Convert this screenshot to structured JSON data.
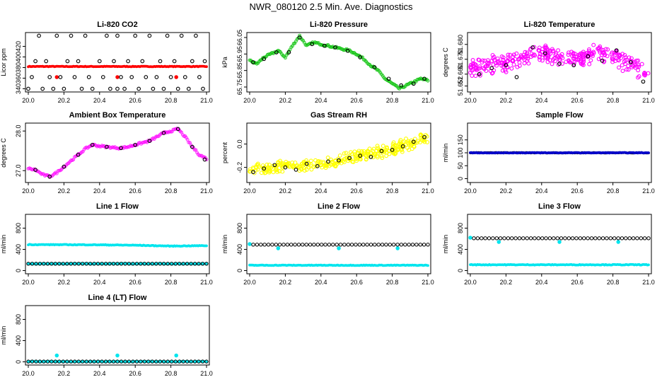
{
  "figure_title": "NWR_080120  2.5 Min. Ave. Diagnostics",
  "chart_data": [
    {
      "id": "co2",
      "type": "scatter",
      "title": "Li-820 CO2",
      "xlabel": "",
      "ylabel": "Licor ppm",
      "xlim": [
        20.0,
        21.0
      ],
      "ylim": [
        334,
        446
      ],
      "xticks": [
        "20.0",
        "20.2",
        "20.4",
        "20.6",
        "20.8",
        "21.0"
      ],
      "yticks": [
        340,
        360,
        380,
        400,
        420
      ],
      "series": [
        {
          "color": "#ff0000",
          "style": "dense",
          "x": [
            20.0,
            20.1,
            20.2,
            20.3,
            20.4,
            20.5,
            20.6,
            20.7,
            20.8,
            20.9,
            21.0
          ],
          "y": [
            382,
            382,
            382,
            382,
            382,
            382,
            382,
            382,
            382,
            382,
            382
          ]
        },
        {
          "color": "#ff0000",
          "style": "points",
          "x": [
            20.16,
            20.5,
            20.83
          ],
          "y": [
            362,
            362,
            362
          ]
        },
        {
          "color": "#000000",
          "style": "open",
          "x": [
            20.0,
            20.08,
            20.14,
            20.2,
            20.3,
            20.36,
            20.46,
            20.5,
            20.54,
            20.62,
            20.7,
            20.76,
            20.84,
            20.9,
            20.98,
            20.02,
            20.12,
            20.18,
            20.26,
            20.34,
            20.42,
            20.52,
            20.58,
            20.66,
            20.72,
            20.8,
            20.88,
            20.96,
            20.04,
            20.1,
            20.22,
            20.28,
            20.4,
            20.48,
            20.56,
            20.64,
            20.74,
            20.82,
            20.92,
            20.99,
            20.06,
            20.16,
            20.24,
            20.32,
            20.44,
            20.5,
            20.6,
            20.68,
            20.78,
            20.86,
            20.94
          ],
          "y": [
            340,
            340,
            340,
            340,
            340,
            340,
            340,
            340,
            340,
            340,
            340,
            340,
            340,
            340,
            340,
            362,
            362,
            362,
            362,
            362,
            362,
            362,
            362,
            362,
            362,
            362,
            362,
            362,
            392,
            392,
            392,
            392,
            392,
            392,
            392,
            392,
            392,
            392,
            392,
            392,
            440,
            440,
            440,
            440,
            440,
            440,
            440,
            440,
            440,
            440,
            440
          ]
        }
      ]
    },
    {
      "id": "pressure",
      "type": "scatter",
      "title": "Li-820 Pressure",
      "xlabel": "",
      "ylabel": "kPa",
      "xlim": [
        20.0,
        21.0
      ],
      "ylim": [
        65.72,
        66.08
      ],
      "xticks": [
        "20.0",
        "20.2",
        "20.4",
        "20.6",
        "20.8",
        "21.0"
      ],
      "yticks": [
        "65.75",
        "65.85",
        "65.95",
        "66.05"
      ],
      "series": [
        {
          "color": "#00c000",
          "style": "line",
          "x": [
            20.0,
            20.04,
            20.08,
            20.12,
            20.16,
            20.2,
            20.24,
            20.28,
            20.32,
            20.36,
            20.4,
            20.44,
            20.48,
            20.52,
            20.56,
            20.6,
            20.64,
            20.68,
            20.72,
            20.76,
            20.8,
            20.84,
            20.88,
            20.92,
            20.96,
            21.0
          ],
          "y": [
            65.91,
            65.89,
            65.93,
            65.95,
            65.97,
            65.93,
            66.0,
            66.06,
            66.0,
            66.02,
            66.01,
            66.0,
            65.99,
            65.98,
            65.97,
            65.95,
            65.92,
            65.88,
            65.85,
            65.8,
            65.77,
            65.74,
            65.76,
            65.78,
            65.8,
            65.79
          ]
        },
        {
          "color": "#000000",
          "style": "open",
          "x": [
            20.02,
            20.08,
            20.15,
            20.22,
            20.28,
            20.35,
            20.42,
            20.48,
            20.55,
            20.62,
            20.7,
            20.78,
            20.85,
            20.92,
            20.98
          ],
          "y": [
            65.9,
            65.92,
            65.96,
            65.96,
            66.05,
            66.01,
            66.0,
            65.99,
            65.97,
            65.93,
            65.87,
            65.8,
            65.76,
            65.77,
            65.8
          ]
        }
      ]
    },
    {
      "id": "licor_temp",
      "type": "scatter",
      "title": "Li-820 Temperature",
      "xlabel": "",
      "ylabel": "degrees C",
      "xlim": [
        20.0,
        21.0
      ],
      "ylim": [
        51.648,
        51.688
      ],
      "xticks": [
        "20.0",
        "20.2",
        "20.4",
        "20.6",
        "20.8",
        "21.0"
      ],
      "yticks": [
        "51.652",
        "51.660",
        "51.670",
        "51.680"
      ],
      "series": [
        {
          "color": "#ff00ff",
          "style": "cloud",
          "x": [
            20.0,
            20.1,
            20.2,
            20.3,
            20.4,
            20.5,
            20.6,
            20.7,
            20.8,
            20.9,
            21.0
          ],
          "y": [
            51.664,
            51.666,
            51.668,
            51.672,
            51.674,
            51.672,
            51.67,
            51.674,
            51.671,
            51.667,
            51.658
          ],
          "spread": 0.007
        },
        {
          "color": "#000000",
          "style": "open",
          "x": [
            20.05,
            20.12,
            20.2,
            20.26,
            20.35,
            20.42,
            20.5,
            20.58,
            20.66,
            20.74,
            20.82,
            20.9,
            20.97
          ],
          "y": [
            51.66,
            51.664,
            51.666,
            51.658,
            51.678,
            51.674,
            51.667,
            51.666,
            51.672,
            51.669,
            51.676,
            51.668,
            51.655
          ]
        }
      ]
    },
    {
      "id": "box_temp",
      "type": "scatter",
      "title": "Ambient Box Temperature",
      "xlabel": "",
      "ylabel": "degrees C",
      "xlim": [
        20.0,
        21.0
      ],
      "ylim": [
        26.7,
        28.2
      ],
      "xticks": [
        "20.0",
        "20.2",
        "20.4",
        "20.6",
        "20.8",
        "21.0"
      ],
      "yticks": [
        "27.0",
        "28.0"
      ],
      "series": [
        {
          "color": "#ff00ff",
          "style": "line",
          "x": [
            20.0,
            20.04,
            20.08,
            20.12,
            20.16,
            20.2,
            20.24,
            20.28,
            20.32,
            20.36,
            20.4,
            20.44,
            20.48,
            20.52,
            20.56,
            20.6,
            20.64,
            20.68,
            20.72,
            20.76,
            20.8,
            20.84,
            20.88,
            20.92,
            20.96,
            21.0
          ],
          "y": [
            27.05,
            27.02,
            26.9,
            26.85,
            26.95,
            27.1,
            27.25,
            27.4,
            27.55,
            27.65,
            27.62,
            27.6,
            27.58,
            27.57,
            27.6,
            27.65,
            27.7,
            27.75,
            27.85,
            27.95,
            28.0,
            28.05,
            27.85,
            27.6,
            27.4,
            27.3
          ]
        },
        {
          "color": "#000000",
          "style": "open",
          "x": [
            20.04,
            20.12,
            20.2,
            20.28,
            20.36,
            20.44,
            20.52,
            20.6,
            20.68,
            20.76,
            20.84,
            20.92,
            20.99
          ],
          "y": [
            27.02,
            26.85,
            27.1,
            27.4,
            27.65,
            27.6,
            27.57,
            27.65,
            27.75,
            27.95,
            28.05,
            27.6,
            27.28
          ]
        }
      ]
    },
    {
      "id": "rh",
      "type": "scatter",
      "title": "Gas Stream RH",
      "xlabel": "",
      "ylabel": "percent",
      "xlim": [
        20.0,
        21.0
      ],
      "ylim": [
        -0.33,
        0.18
      ],
      "xticks": [
        "20.0",
        "20.2",
        "20.4",
        "20.6",
        "20.8",
        "21.0"
      ],
      "yticks": [
        "-0.2",
        "0.0"
      ],
      "series": [
        {
          "color": "#ffff00",
          "style": "cloud",
          "x": [
            20.0,
            20.1,
            20.2,
            20.3,
            20.4,
            20.5,
            20.6,
            20.7,
            20.8,
            20.9,
            21.0
          ],
          "y": [
            -0.22,
            -0.21,
            -0.19,
            -0.18,
            -0.17,
            -0.14,
            -0.11,
            -0.08,
            -0.04,
            0.0,
            0.06
          ],
          "spread": 0.06
        },
        {
          "color": "#000000",
          "style": "open",
          "x": [
            20.02,
            20.08,
            20.14,
            20.2,
            20.26,
            20.32,
            20.38,
            20.44,
            20.5,
            20.56,
            20.62,
            20.68,
            20.74,
            20.8,
            20.86,
            20.92,
            20.98
          ],
          "y": [
            -0.24,
            -0.21,
            -0.18,
            -0.2,
            -0.22,
            -0.17,
            -0.19,
            -0.15,
            -0.14,
            -0.12,
            -0.1,
            -0.11,
            -0.06,
            -0.05,
            -0.02,
            0.02,
            0.06
          ]
        }
      ]
    },
    {
      "id": "sample_flow",
      "type": "scatter",
      "title": "Sample Flow",
      "xlabel": "",
      "ylabel": "ml/min",
      "xlim": [
        20.0,
        21.0
      ],
      "ylim": [
        -15,
        215
      ],
      "xticks": [
        "20.0",
        "20.2",
        "20.4",
        "20.6",
        "20.8",
        "21.0"
      ],
      "yticks": [
        0,
        50,
        100,
        150
      ],
      "series": [
        {
          "color": "#000000",
          "style": "dense",
          "x": [
            20.0,
            21.0
          ],
          "y": [
            100,
            100
          ]
        },
        {
          "color": "#0000cc",
          "style": "dense",
          "x": [
            20.0,
            21.0
          ],
          "y": [
            100,
            100
          ]
        }
      ]
    },
    {
      "id": "line1",
      "type": "scatter",
      "title": "Line 1 Flow",
      "xlabel": "",
      "ylabel": "ml/min",
      "xlim": [
        20.0,
        21.0
      ],
      "ylim": [
        -60,
        1060
      ],
      "xticks": [
        "20.0",
        "20.2",
        "20.4",
        "20.6",
        "20.8",
        "21.0"
      ],
      "yticks": [
        0,
        400,
        800
      ],
      "series": [
        {
          "color": "#00e5ee",
          "style": "dense",
          "x": [
            20.0,
            20.2,
            20.4,
            20.6,
            20.8,
            21.0
          ],
          "y": [
            490,
            488,
            485,
            478,
            462,
            470
          ]
        },
        {
          "color": "#00e5ee",
          "style": "dense",
          "x": [
            20.0,
            21.0
          ],
          "y": [
            130,
            130
          ]
        },
        {
          "color": "#000000",
          "style": "open-row",
          "x": [
            20.0,
            21.0
          ],
          "y": [
            130,
            130
          ]
        }
      ]
    },
    {
      "id": "line2",
      "type": "scatter",
      "title": "Line 2 Flow",
      "xlabel": "",
      "ylabel": "ml/min",
      "xlim": [
        20.0,
        21.0
      ],
      "ylim": [
        -60,
        1060
      ],
      "xticks": [
        "20.0",
        "20.2",
        "20.4",
        "20.6",
        "20.8",
        "21.0"
      ],
      "yticks": [
        0,
        400,
        800
      ],
      "series": [
        {
          "color": "#00e5ee",
          "style": "dense",
          "x": [
            20.0,
            21.0
          ],
          "y": [
            100,
            100
          ]
        },
        {
          "color": "#00e5ee",
          "style": "points",
          "x": [
            20.0,
            20.16,
            20.5,
            20.83
          ],
          "y": [
            500,
            420,
            420,
            420
          ]
        },
        {
          "color": "#000000",
          "style": "open-row",
          "x": [
            20.02,
            21.0
          ],
          "y": [
            490,
            490
          ]
        }
      ]
    },
    {
      "id": "line3",
      "type": "scatter",
      "title": "Line 3 Flow",
      "xlabel": "",
      "ylabel": "ml/min",
      "xlim": [
        20.0,
        21.0
      ],
      "ylim": [
        -60,
        1060
      ],
      "xticks": [
        "20.0",
        "20.2",
        "20.4",
        "20.6",
        "20.8",
        "21.0"
      ],
      "yticks": [
        0,
        400,
        800
      ],
      "series": [
        {
          "color": "#00e5ee",
          "style": "dense",
          "x": [
            20.0,
            21.0
          ],
          "y": [
            110,
            110
          ]
        },
        {
          "color": "#00e5ee",
          "style": "points",
          "x": [
            20.0,
            20.16,
            20.5,
            20.83
          ],
          "y": [
            620,
            540,
            540,
            540
          ]
        },
        {
          "color": "#000000",
          "style": "open-row",
          "x": [
            20.02,
            21.0
          ],
          "y": [
            610,
            610
          ]
        }
      ]
    },
    {
      "id": "line4",
      "type": "scatter",
      "title": "Line 4 (LT) Flow",
      "xlabel": "",
      "ylabel": "ml/min",
      "xlim": [
        20.0,
        21.0
      ],
      "ylim": [
        -60,
        1060
      ],
      "xticks": [
        "20.0",
        "20.2",
        "20.4",
        "20.6",
        "20.8",
        "21.0"
      ],
      "yticks": [
        0,
        400,
        800
      ],
      "series": [
        {
          "color": "#00e5ee",
          "style": "dense",
          "x": [
            20.0,
            21.0
          ],
          "y": [
            5,
            5
          ]
        },
        {
          "color": "#00e5ee",
          "style": "points",
          "x": [
            20.16,
            20.5,
            20.83
          ],
          "y": [
            120,
            120,
            120
          ]
        },
        {
          "color": "#000000",
          "style": "open-row",
          "x": [
            20.0,
            21.0
          ],
          "y": [
            5,
            5
          ]
        }
      ]
    }
  ]
}
